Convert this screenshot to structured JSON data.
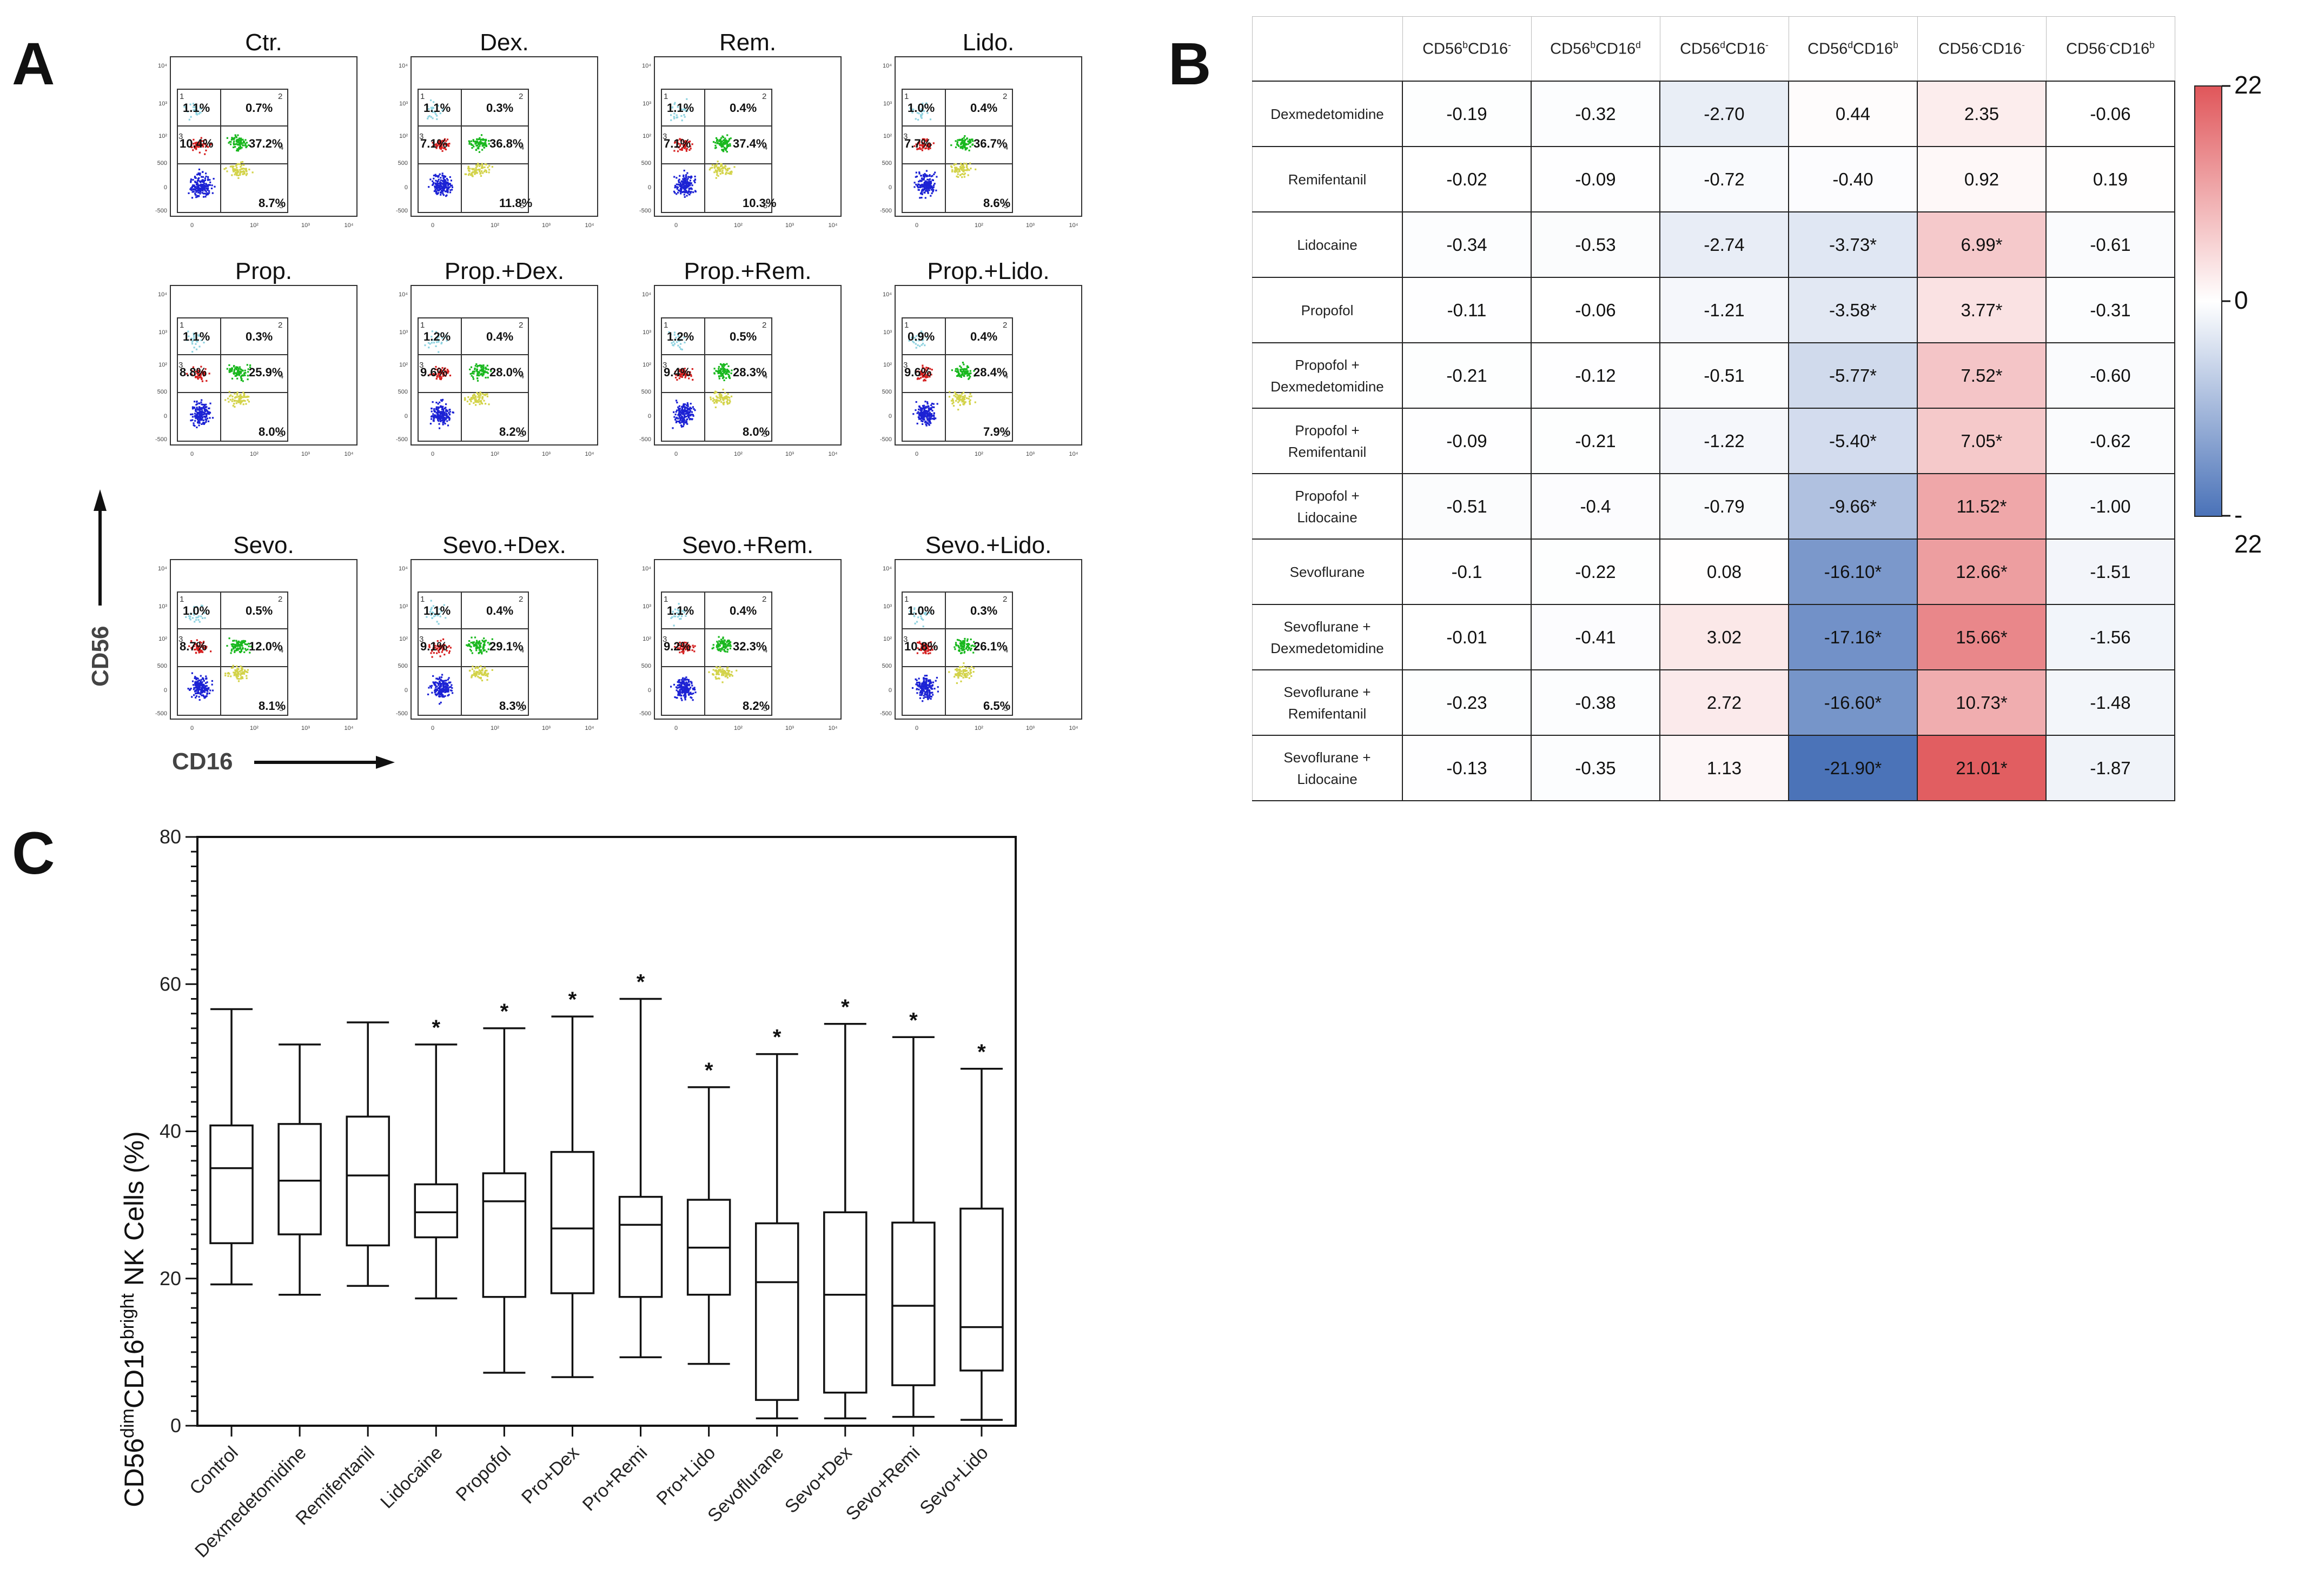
{
  "panel_labels": {
    "a": "A",
    "b": "B",
    "c": "C"
  },
  "panel_a": {
    "axis_y": "CD56",
    "axis_x": "CD16",
    "tick_labels_x": [
      "0",
      "10²",
      "10³",
      "10⁴"
    ],
    "tick_labels_y": [
      "10⁴",
      "10³",
      "10²",
      "500",
      "0",
      "-500"
    ],
    "quadrant_numbers": [
      "1",
      "2",
      "3",
      "4",
      "5"
    ],
    "colors": {
      "q1": "#8fd3e0",
      "q2": "#d62020",
      "q3": "#19b81e",
      "q4": "#1c22d4",
      "q5": "#d3d34a"
    },
    "plots": [
      {
        "title": "Ctr.",
        "q1": "1.1%",
        "q2": "0.7%",
        "q3": "10.4%",
        "q4": "37.2%",
        "q5": "8.7%"
      },
      {
        "title": "Dex.",
        "q1": "1.1%",
        "q2": "0.3%",
        "q3": "7.1%",
        "q4": "36.8%",
        "q5": "11.8%"
      },
      {
        "title": "Rem.",
        "q1": "1.1%",
        "q2": "0.4%",
        "q3": "7.1%",
        "q4": "37.4%",
        "q5": "10.3%"
      },
      {
        "title": "Lido.",
        "q1": "1.0%",
        "q2": "0.4%",
        "q3": "7.7%",
        "q4": "36.7%",
        "q5": "8.6%"
      },
      {
        "title": "Prop.",
        "q1": "1.1%",
        "q2": "0.3%",
        "q3": "8.8%",
        "q4": "25.9%",
        "q5": "8.0%"
      },
      {
        "title": "Prop.+Dex.",
        "q1": "1.2%",
        "q2": "0.4%",
        "q3": "9.6%",
        "q4": "28.0%",
        "q5": "8.2%"
      },
      {
        "title": "Prop.+Rem.",
        "q1": "1.2%",
        "q2": "0.5%",
        "q3": "9.4%",
        "q4": "28.3%",
        "q5": "8.0%"
      },
      {
        "title": "Prop.+Lido.",
        "q1": "0.9%",
        "q2": "0.4%",
        "q3": "9.6%",
        "q4": "28.4%",
        "q5": "7.9%"
      },
      {
        "title": "Sevo.",
        "q1": "1.0%",
        "q2": "0.5%",
        "q3": "8.7%",
        "q4": "12.0%",
        "q5": "8.1%"
      },
      {
        "title": "Sevo.+Dex.",
        "q1": "1.1%",
        "q2": "0.4%",
        "q3": "9.1%",
        "q4": "29.1%",
        "q5": "8.3%"
      },
      {
        "title": "Sevo.+Rem.",
        "q1": "1.1%",
        "q2": "0.4%",
        "q3": "9.2%",
        "q4": "32.3%",
        "q5": "8.2%"
      },
      {
        "title": "Sevo.+Lido.",
        "q1": "1.0%",
        "q2": "0.3%",
        "q3": "10.8%",
        "q4": "26.1%",
        "q5": "6.5%"
      }
    ]
  },
  "panel_b": {
    "columns": [
      {
        "base": "CD56",
        "sup1": "b",
        "mid": "CD16",
        "sup2": "-"
      },
      {
        "base": "CD56",
        "sup1": "b",
        "mid": "CD16",
        "sup2": "d"
      },
      {
        "base": "CD56",
        "sup1": "d",
        "mid": "CD16",
        "sup2": "-"
      },
      {
        "base": "CD56",
        "sup1": "d",
        "mid": "CD16",
        "sup2": "b"
      },
      {
        "base": "CD56",
        "sup1": "-",
        "mid": "CD16",
        "sup2": "-"
      },
      {
        "base": "CD56",
        "sup1": "-",
        "mid": "CD16",
        "sup2": "b"
      }
    ],
    "rows": [
      {
        "label": [
          "Dexmedetomidine"
        ],
        "cells": [
          "-0.19",
          "-0.32",
          "-2.70",
          "0.44",
          "2.35",
          "-0.06"
        ],
        "values": [
          -0.19,
          -0.32,
          -2.7,
          0.44,
          2.35,
          -0.06
        ]
      },
      {
        "label": [
          "Remifentanil"
        ],
        "cells": [
          "-0.02",
          "-0.09",
          "-0.72",
          "-0.40",
          "0.92",
          "0.19"
        ],
        "values": [
          -0.02,
          -0.09,
          -0.72,
          -0.4,
          0.92,
          0.19
        ]
      },
      {
        "label": [
          "Lidocaine"
        ],
        "cells": [
          "-0.34",
          "-0.53",
          "-2.74",
          "-3.73*",
          "6.99*",
          "-0.61"
        ],
        "values": [
          -0.34,
          -0.53,
          -2.74,
          -3.73,
          6.99,
          -0.61
        ]
      },
      {
        "label": [
          "Propofol"
        ],
        "cells": [
          "-0.11",
          "-0.06",
          "-1.21",
          "-3.58*",
          "3.77*",
          "-0.31"
        ],
        "values": [
          -0.11,
          -0.06,
          -1.21,
          -3.58,
          3.77,
          -0.31
        ]
      },
      {
        "label": [
          "Propofol +",
          "Dexmedetomidine"
        ],
        "cells": [
          "-0.21",
          "-0.12",
          "-0.51",
          "-5.77*",
          "7.52*",
          "-0.60"
        ],
        "values": [
          -0.21,
          -0.12,
          -0.51,
          -5.77,
          7.52,
          -0.6
        ]
      },
      {
        "label": [
          "Propofol +",
          "Remifentanil"
        ],
        "cells": [
          "-0.09",
          "-0.21",
          "-1.22",
          "-5.40*",
          "7.05*",
          "-0.62"
        ],
        "values": [
          -0.09,
          -0.21,
          -1.22,
          -5.4,
          7.05,
          -0.62
        ]
      },
      {
        "label": [
          "Propofol +",
          "Lidocaine"
        ],
        "cells": [
          "-0.51",
          "-0.4",
          "-0.79",
          "-9.66*",
          "11.52*",
          "-1.00"
        ],
        "values": [
          -0.51,
          -0.4,
          -0.79,
          -9.66,
          11.52,
          -1.0
        ]
      },
      {
        "label": [
          "Sevoflurane"
        ],
        "cells": [
          "-0.1",
          "-0.22",
          "0.08",
          "-16.10*",
          "12.66*",
          "-1.51"
        ],
        "values": [
          -0.1,
          -0.22,
          0.08,
          -16.1,
          12.66,
          -1.51
        ]
      },
      {
        "label": [
          "Sevoflurane +",
          "Dexmedetomidine"
        ],
        "cells": [
          "-0.01",
          "-0.41",
          "3.02",
          "-17.16*",
          "15.66*",
          "-1.56"
        ],
        "values": [
          -0.01,
          -0.41,
          3.02,
          -17.16,
          15.66,
          -1.56
        ]
      },
      {
        "label": [
          "Sevoflurane +",
          "Remifentanil"
        ],
        "cells": [
          "-0.23",
          "-0.38",
          "2.72",
          "-16.60*",
          "10.73*",
          "-1.48"
        ],
        "values": [
          -0.23,
          -0.38,
          2.72,
          -16.6,
          10.73,
          -1.48
        ]
      },
      {
        "label": [
          "Sevoflurane +",
          "Lidocaine"
        ],
        "cells": [
          "-0.13",
          "-0.35",
          "1.13",
          "-21.90*",
          "21.01*",
          "-1.87"
        ],
        "values": [
          -0.13,
          -0.35,
          1.13,
          -21.9,
          21.01,
          -1.87
        ]
      }
    ],
    "colorbar": {
      "max_label": "22",
      "mid_label": "0",
      "min_label": "- 22",
      "max": 22,
      "min": -22,
      "color_pos": "#e0565a",
      "color_zero": "#ffffff",
      "color_neg": "#4a72b8"
    }
  },
  "chart_data": {
    "type": "boxplot",
    "ylabel": {
      "base1": "CD56",
      "sup1": "dim",
      "base2": "CD16",
      "sup2": "bright",
      "rest": " NK Cells (%)"
    },
    "ylim": [
      0,
      80
    ],
    "yticks": [
      0,
      20,
      40,
      60,
      80
    ],
    "categories": [
      "Control",
      "Dexmedetomidine",
      "Remifentanil",
      "Lidocaine",
      "Propofol",
      "Pro+Dex",
      "Pro+Remi",
      "Pro+Lido",
      "Sevoflurane",
      "Sevo+Dex",
      "Sevo+Remi",
      "Sevo+Lido"
    ],
    "boxes": [
      {
        "min": 19.2,
        "q1": 24.8,
        "median": 35.0,
        "q3": 40.8,
        "max": 56.6,
        "significant": false
      },
      {
        "min": 17.8,
        "q1": 26.0,
        "median": 33.3,
        "q3": 41.0,
        "max": 51.8,
        "significant": false
      },
      {
        "min": 19.0,
        "q1": 24.5,
        "median": 34.0,
        "q3": 42.0,
        "max": 54.8,
        "significant": false
      },
      {
        "min": 17.3,
        "q1": 25.6,
        "median": 29.0,
        "q3": 32.8,
        "max": 51.8,
        "significant": true
      },
      {
        "min": 7.2,
        "q1": 17.5,
        "median": 30.5,
        "q3": 34.3,
        "max": 54.0,
        "significant": true
      },
      {
        "min": 6.6,
        "q1": 18.0,
        "median": 26.8,
        "q3": 37.2,
        "max": 55.6,
        "significant": true
      },
      {
        "min": 9.3,
        "q1": 17.5,
        "median": 27.3,
        "q3": 31.1,
        "max": 58.0,
        "significant": true
      },
      {
        "min": 8.4,
        "q1": 17.8,
        "median": 24.2,
        "q3": 30.7,
        "max": 46.0,
        "significant": true
      },
      {
        "min": 1.0,
        "q1": 3.5,
        "median": 19.5,
        "q3": 27.5,
        "max": 50.5,
        "significant": true
      },
      {
        "min": 1.0,
        "q1": 4.5,
        "median": 17.8,
        "q3": 29.0,
        "max": 54.6,
        "significant": true
      },
      {
        "min": 1.2,
        "q1": 5.5,
        "median": 16.3,
        "q3": 27.6,
        "max": 52.8,
        "significant": true
      },
      {
        "min": 0.8,
        "q1": 7.5,
        "median": 13.4,
        "q3": 29.5,
        "max": 48.5,
        "significant": true
      }
    ],
    "significance_mark": "*"
  }
}
